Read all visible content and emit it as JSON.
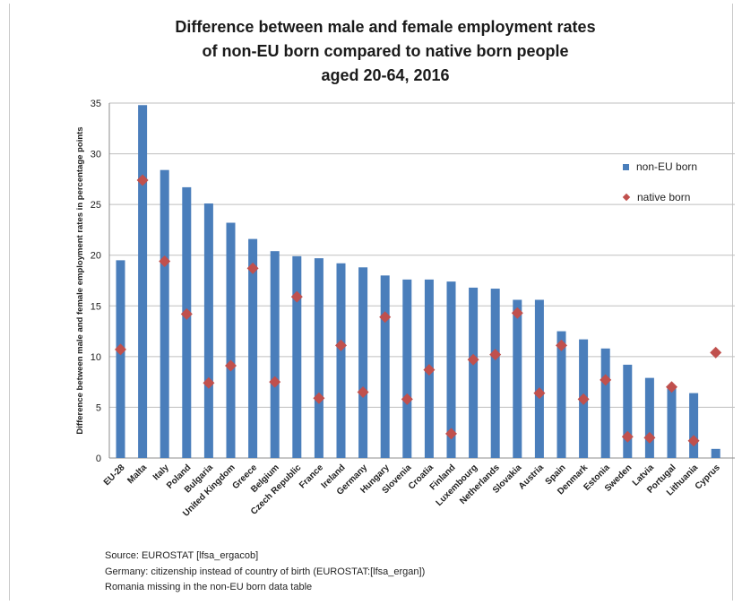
{
  "chart_data": {
    "type": "bar",
    "title_lines": [
      "Difference between male and female employment rates",
      "of non-EU born compared to native born people",
      "aged 20-64, 2016"
    ],
    "ylabel": "Difference between male and female employment rates in percentage points",
    "xlabel": "",
    "ylim": [
      0,
      35
    ],
    "yticks": [
      0,
      5,
      10,
      15,
      20,
      25,
      30,
      35
    ],
    "grid": "horizontal",
    "legend_position": "right",
    "categories": [
      "EU-28",
      "Malta",
      "Italy",
      "Poland",
      "Bulgaria",
      "United Kingdom",
      "Greece",
      "Belgium",
      "Czech Republic",
      "France",
      "Ireland",
      "Germany",
      "Hungary",
      "Slovenia",
      "Croatia",
      "Finland",
      "Luxembourg",
      "Netherlands",
      "Slovakia",
      "Austria",
      "Spain",
      "Denmark",
      "Estonia",
      "Sweden",
      "Latvia",
      "Portugal",
      "Lithuania",
      "Cyprus"
    ],
    "series": [
      {
        "name": "non-EU born",
        "type": "bar",
        "color": "#4a7ebb",
        "values": [
          19.5,
          34.8,
          28.4,
          26.7,
          25.1,
          23.2,
          21.6,
          20.4,
          19.9,
          19.7,
          19.2,
          18.8,
          18.0,
          17.6,
          17.6,
          17.4,
          16.8,
          16.7,
          15.6,
          15.6,
          12.5,
          11.7,
          10.8,
          9.2,
          7.9,
          6.9,
          6.4,
          0.9
        ]
      },
      {
        "name": "native born",
        "type": "marker",
        "marker": "diamond",
        "color": "#c0504d",
        "values": [
          10.7,
          27.4,
          19.4,
          14.2,
          7.4,
          9.1,
          18.7,
          7.5,
          15.9,
          5.9,
          11.1,
          6.5,
          13.9,
          5.8,
          8.7,
          2.4,
          9.7,
          10.2,
          14.3,
          6.4,
          11.1,
          5.8,
          7.7,
          2.1,
          2.0,
          7.0,
          1.7,
          10.4
        ]
      }
    ]
  },
  "source_notes": [
    "Source: EUROSTAT [lfsa_ergacob]",
    "Germany: citizenship instead of country of birth (EUROSTAT:[lfsa_ergan])",
    "Romania missing in the non-EU born data table"
  ]
}
